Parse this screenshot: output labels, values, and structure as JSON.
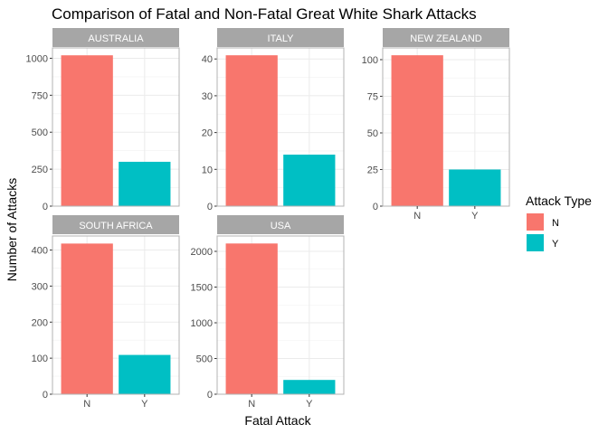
{
  "chart_data": {
    "type": "bar",
    "title": "Comparison of Fatal and Non-Fatal Great White Shark Attacks",
    "xlabel": "Fatal Attack",
    "ylabel": "Number of Attacks",
    "categories": [
      "N",
      "Y"
    ],
    "legend": {
      "title": "Attack Type",
      "position": "right",
      "items": [
        {
          "label": "N",
          "color": "#F8766D"
        },
        {
          "label": "Y",
          "color": "#00BFC4"
        }
      ]
    },
    "grid": true,
    "facets": [
      {
        "name": "AUSTRALIA",
        "values": [
          1020,
          300
        ],
        "ylim": [
          0,
          1070
        ],
        "yticks": [
          0,
          250,
          500,
          750,
          1000
        ]
      },
      {
        "name": "ITALY",
        "values": [
          41,
          14
        ],
        "ylim": [
          0,
          43
        ],
        "yticks": [
          0,
          10,
          20,
          30,
          40
        ]
      },
      {
        "name": "NEW ZEALAND",
        "values": [
          103,
          25
        ],
        "ylim": [
          0,
          108
        ],
        "yticks": [
          0,
          25,
          50,
          75,
          100
        ]
      },
      {
        "name": "SOUTH AFRICA",
        "values": [
          418,
          109
        ],
        "ylim": [
          0,
          439
        ],
        "yticks": [
          0,
          100,
          200,
          300,
          400
        ]
      },
      {
        "name": "USA",
        "values": [
          2110,
          200
        ],
        "ylim": [
          0,
          2215
        ],
        "yticks": [
          0,
          500,
          1000,
          1500,
          2000
        ]
      }
    ]
  }
}
